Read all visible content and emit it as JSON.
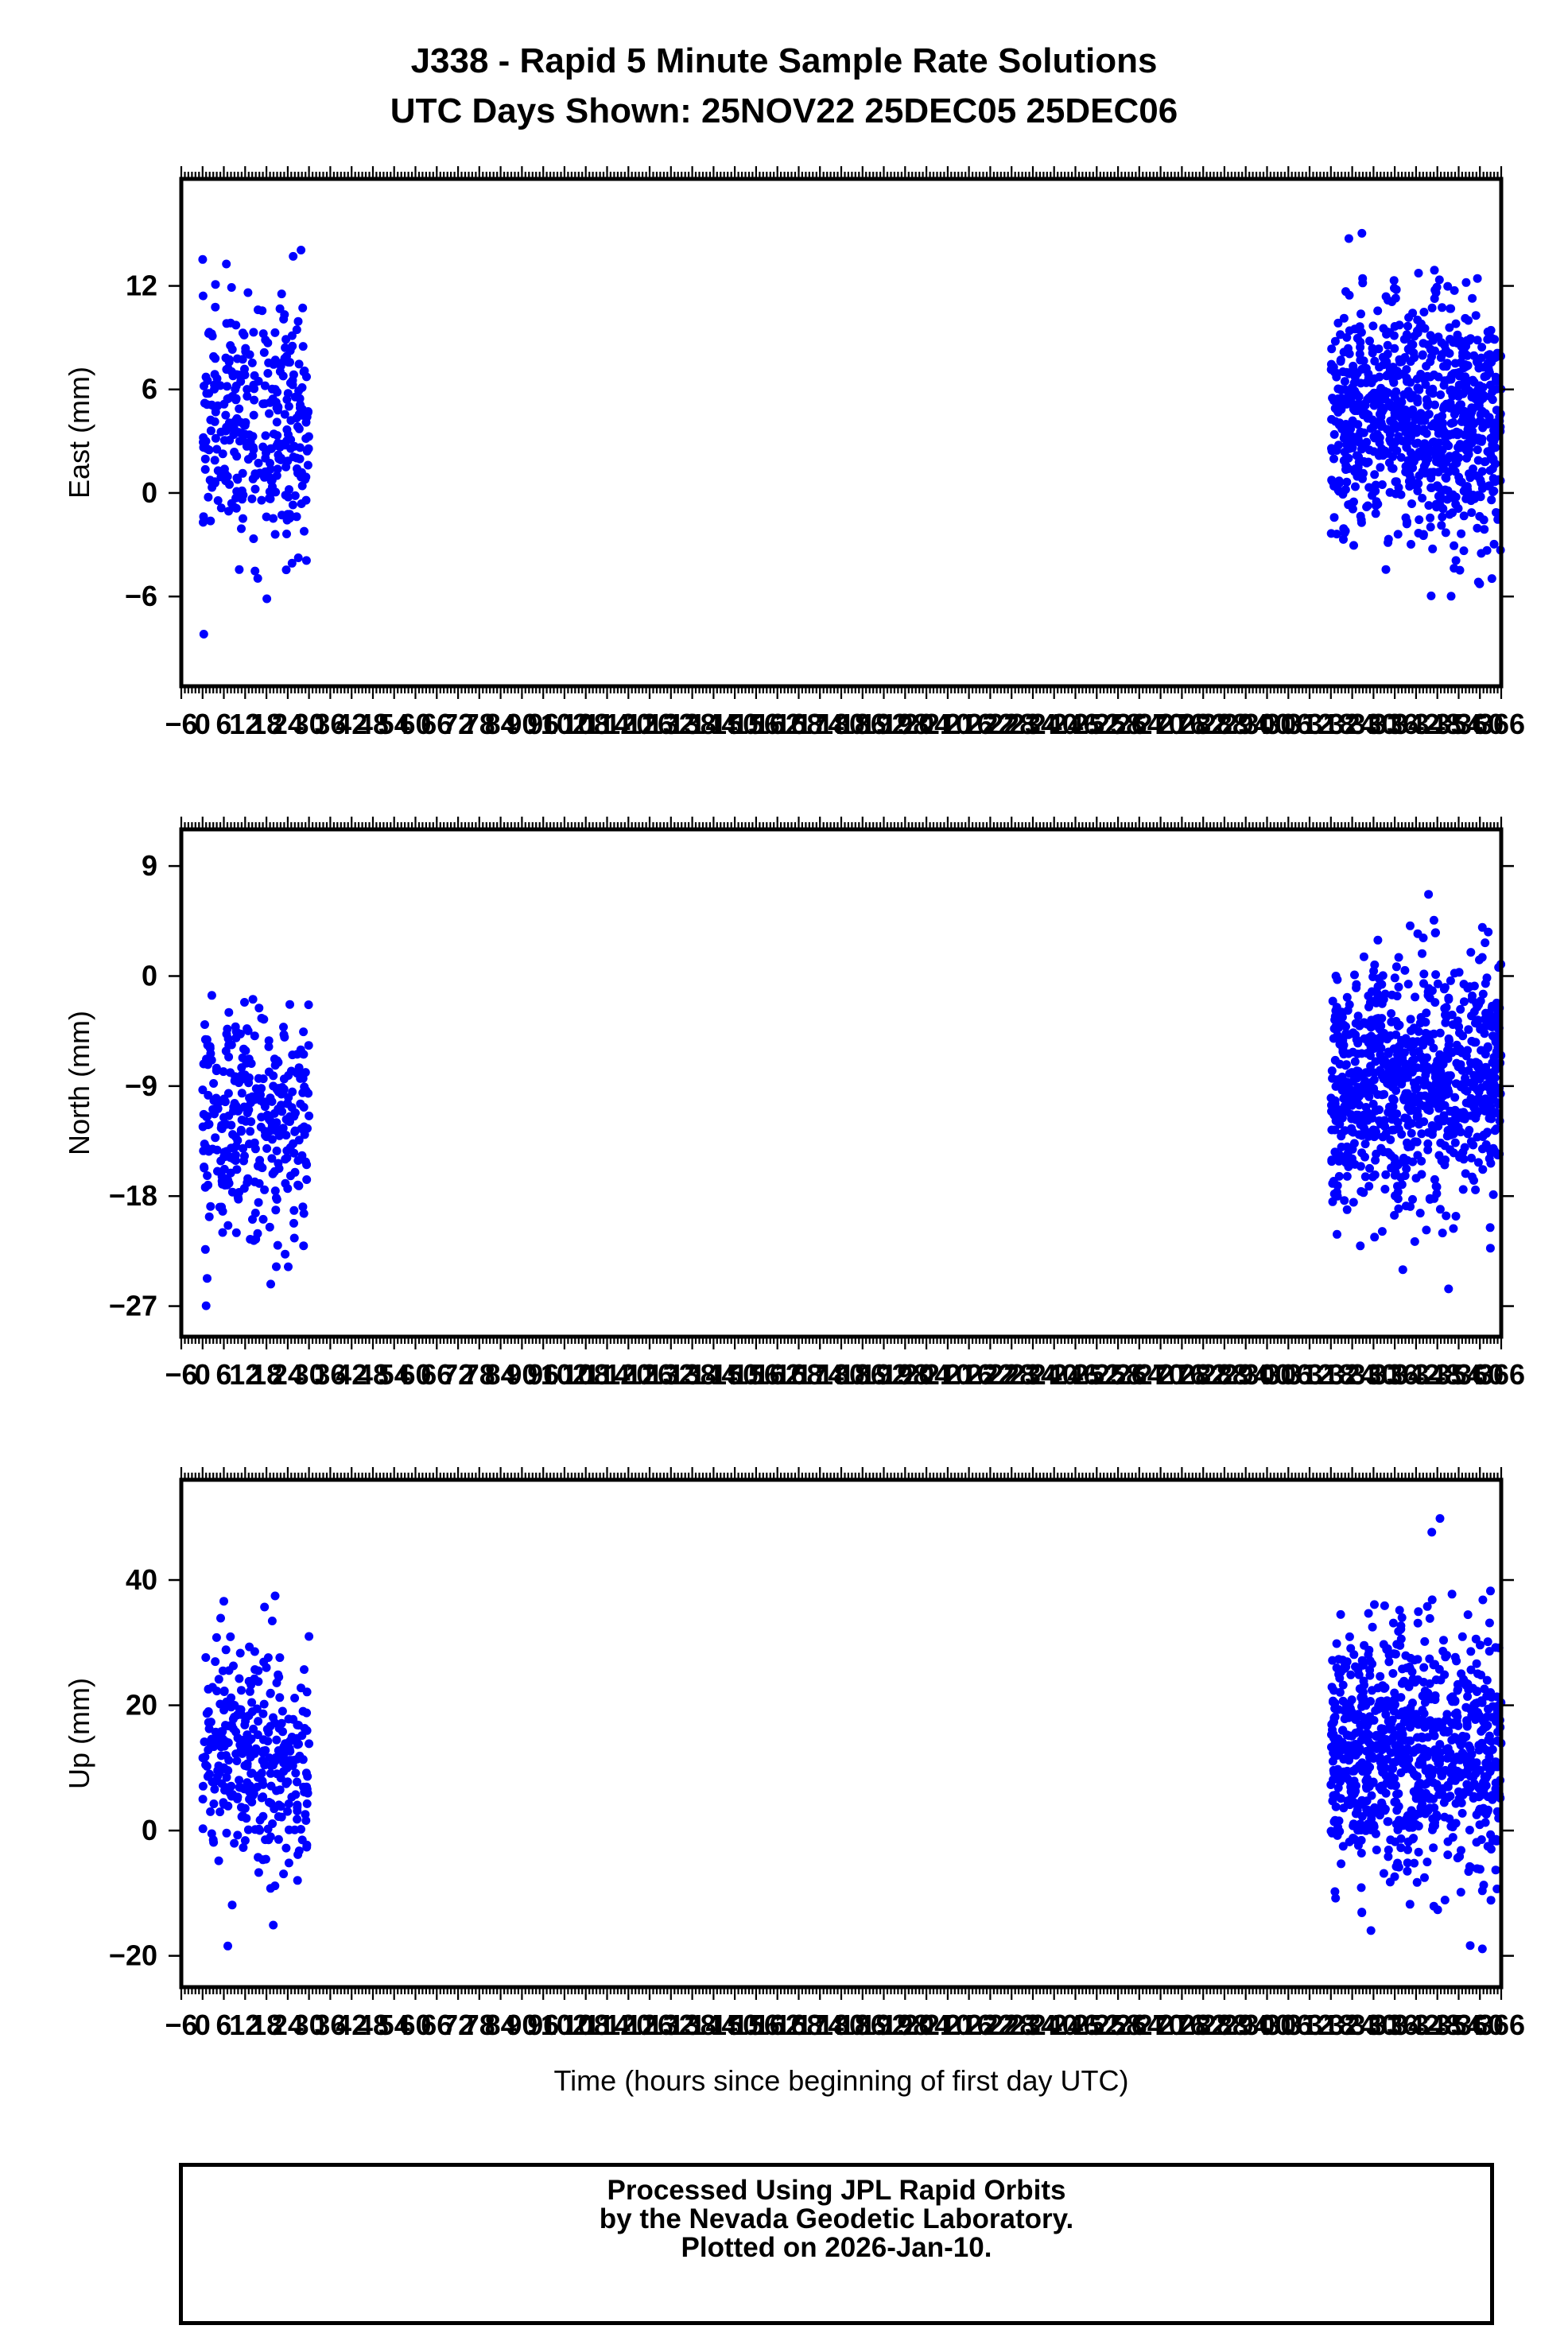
{
  "title_line1": "J338 - Rapid 5 Minute Sample Rate Solutions",
  "title_line2": "UTC Days Shown:  25NOV22 25DEC05 25DEC06",
  "footer": {
    "line1": "Processed Using JPL Rapid Orbits",
    "line2": "by the Nevada Geodetic Laboratory.",
    "line3": "Plotted on 2026-Jan-10."
  },
  "colors": {
    "points": "#0000ff",
    "frame": "#000000"
  },
  "chart_data": [
    {
      "type": "scatter",
      "ylabel": "East (mm)",
      "xlabel": "",
      "ylim": [
        -11.2,
        18.2
      ],
      "yticks": [
        -6,
        0,
        6,
        12
      ],
      "xlim": [
        -6,
        366
      ],
      "xticks_label": "-6 0 6 12 18 24 30 36 42 48 54 60 66 72 78 84 90 96 102 108 114 120 126 132 138 144 150 156 162 168 174 180 186 192 198 204 210 216 222 228 234 240 246 252 258 264 270 276 282 288 294 300 306 312 318 324 330 336 342 348 354 360 366",
      "series": [
        {
          "x_range": [
            0,
            30
          ],
          "y_center": 4,
          "y_spread": 3.5,
          "n": 330
        },
        {
          "x_range": [
            318,
            366
          ],
          "y_center": 4,
          "y_spread": 3.5,
          "n": 860
        }
      ]
    },
    {
      "type": "scatter",
      "ylabel": "North (mm)",
      "xlabel": "",
      "ylim": [
        -29.5,
        12
      ],
      "yticks": [
        -27,
        -18,
        -9,
        0,
        9
      ],
      "xlim": [
        -6,
        366
      ],
      "xticks_label": "-6 0 6 12 18 24 30 36 42 48 54 60 66 72 78 84 90 96 102 108 114 120 126 132 138 144 150 156 162 168 174 180 186 192 198 204 210 216 222 228 234 240 246 252 258 264 270 276 282 288 294 300 306 312 318 324 330 336 342 348 354 360 366",
      "series": [
        {
          "x_range": [
            0,
            30
          ],
          "y_center": -12,
          "y_spread": 4.5,
          "n": 330
        },
        {
          "x_range": [
            318,
            366
          ],
          "y_center": -9,
          "y_spread": 5,
          "n": 860
        }
      ]
    },
    {
      "type": "scatter",
      "ylabel": "Up (mm)",
      "xlabel": "Time (hours since beginning of first day UTC)",
      "ylim": [
        -25,
        56
      ],
      "yticks": [
        -20,
        0,
        20,
        40
      ],
      "xlim": [
        -6,
        366
      ],
      "xticks_label": "-6 0 6 12 18 24 30 36 42 48 54 60 66 72 78 84 90 96 102 108 114 120 126 132 138 144 150 156 162 168 174 180 186 192 198 204 210 216 222 228 234 240 246 252 258 264 270 276 282 288 294 300 306 312 318 324 330 336 342 348 354 360 366",
      "series": [
        {
          "x_range": [
            0,
            30
          ],
          "y_center": 12,
          "y_spread": 9,
          "n": 330
        },
        {
          "x_range": [
            318,
            366
          ],
          "y_center": 12,
          "y_spread": 10,
          "n": 860
        }
      ]
    }
  ]
}
